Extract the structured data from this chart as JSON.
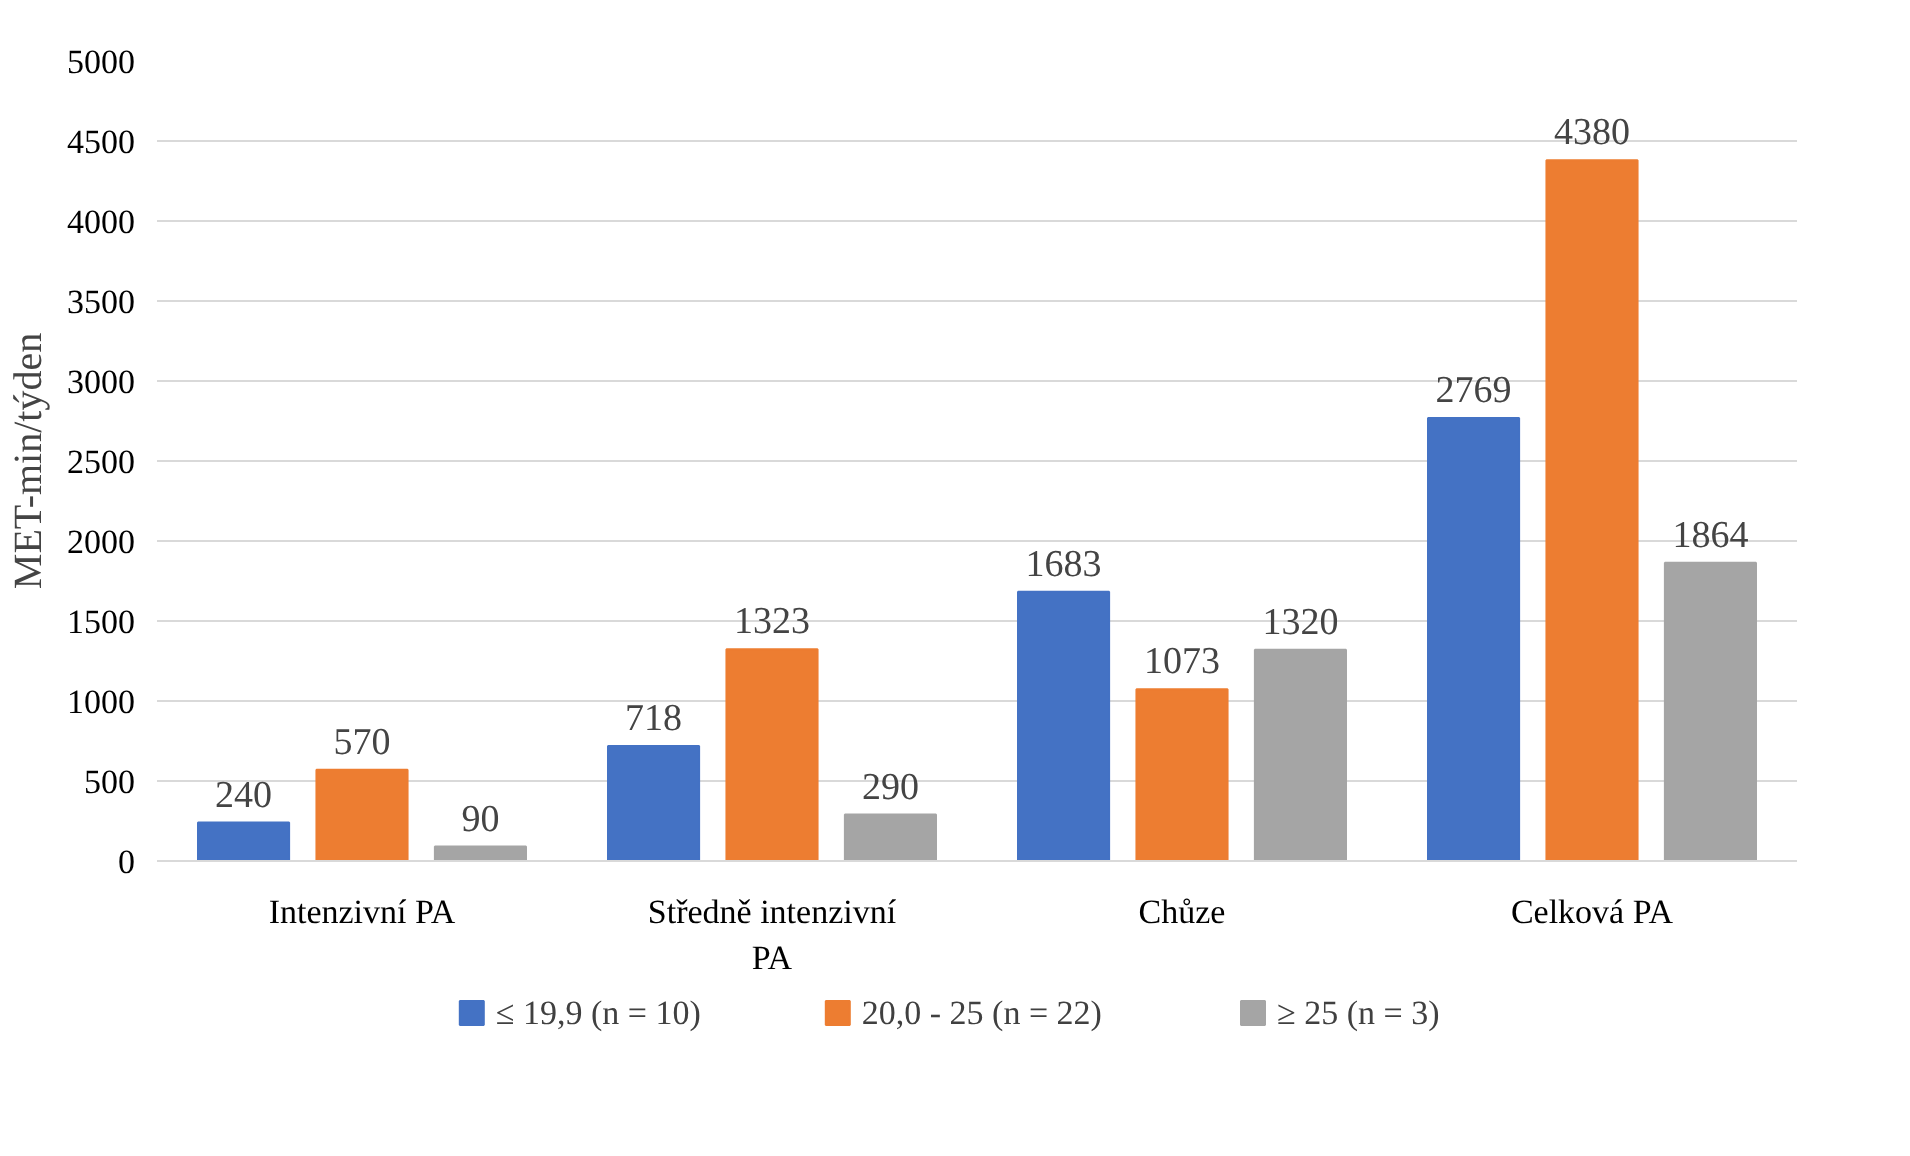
{
  "chart_data": {
    "type": "bar",
    "ylabel": "MET-min/týden",
    "categories": [
      "Intenzivní PA",
      "Středně intenzivní PA",
      "Chůze",
      "Celková PA"
    ],
    "series": [
      {
        "name": "≤ 19,9 (n = 10)",
        "color": "#4472c4",
        "values": [
          240,
          718,
          1683,
          2769
        ]
      },
      {
        "name": "20,0 - 25 (n = 22)",
        "color": "#ed7d31",
        "values": [
          570,
          1323,
          1073,
          4380
        ]
      },
      {
        "name": "≥ 25  (n = 3)",
        "color": "#a5a5a5",
        "values": [
          90,
          290,
          1320,
          1864
        ]
      }
    ],
    "ylim": [
      0,
      5000
    ],
    "yticks": [
      0,
      500,
      1000,
      1500,
      2000,
      2500,
      3000,
      3500,
      4000,
      4500,
      5000
    ],
    "grid": "y",
    "legend": "bottom",
    "data_labels": true
  }
}
